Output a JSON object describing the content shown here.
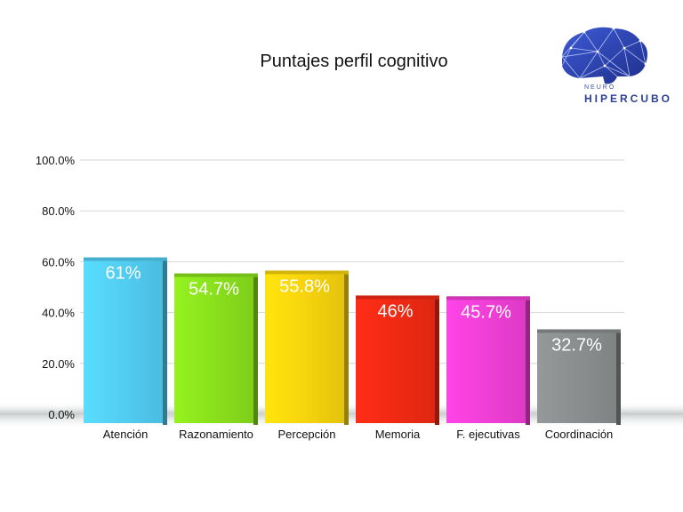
{
  "logo": {
    "line1": "NEURO",
    "line2": "HIPERCUBO"
  },
  "chart_data": {
    "type": "bar",
    "title": "Puntajes perfil cognitivo",
    "categories": [
      "Atención",
      "Razonamiento",
      "Percepción",
      "Memoria",
      "F. ejecutivas",
      "Coordinación"
    ],
    "values": [
      61,
      54.7,
      55.8,
      46,
      45.7,
      32.7
    ],
    "data_labels": [
      "61%",
      "54.7%",
      "55.8%",
      "46%",
      "45.7%",
      "32.7%"
    ],
    "colors": [
      "#52cdf2",
      "#8ae01c",
      "#f7d40d",
      "#f02a14",
      "#f03fd7",
      "#8a8e8e"
    ],
    "ylim": [
      0,
      100
    ],
    "yticks": [
      0,
      20,
      40,
      60,
      80,
      100
    ],
    "ytick_labels": [
      "0.0%",
      "20.0%",
      "40.0%",
      "60.0%",
      "80.0%",
      "100.0%"
    ],
    "xlabel": "",
    "ylabel": "",
    "grid": true,
    "legend": "none"
  }
}
